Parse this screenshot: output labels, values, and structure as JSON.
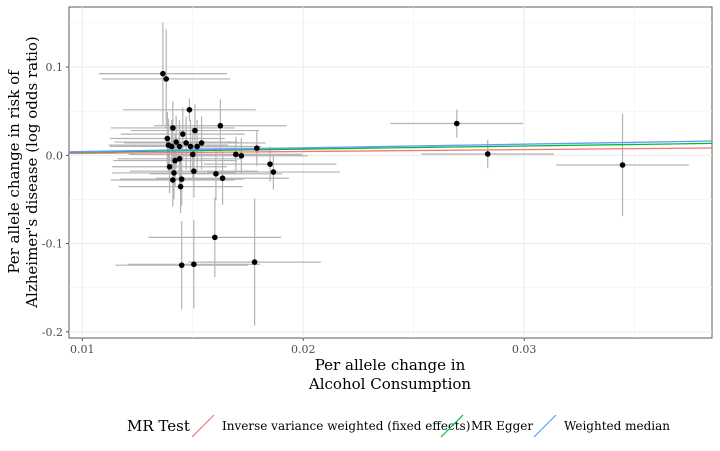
{
  "chart_data": {
    "type": "scatter",
    "xlabel": [
      "Per allele change in",
      "Alcohol Consumption"
    ],
    "ylabel": [
      "Per allele change in risk of",
      "Alzheimer's disease (log odds ratio)"
    ],
    "xlim": [
      0.0094,
      0.0385
    ],
    "ylim": [
      -0.207,
      0.168
    ],
    "x_ticks": [
      0.01,
      0.02,
      0.03
    ],
    "x_tick_labels": [
      "0.01",
      "0.02",
      "0.03"
    ],
    "y_ticks": [
      -0.2,
      -0.1,
      0.0,
      0.1
    ],
    "y_tick_labels": [
      "-0.2",
      "-0.1",
      "0.0",
      "0.1"
    ],
    "grid": true,
    "legend_position": "bottom",
    "points": [
      {
        "x": 0.01365,
        "y": 0.0925,
        "xerr": 0.0029,
        "yerr": 0.058
      },
      {
        "x": 0.0138,
        "y": 0.0865,
        "xerr": 0.0029,
        "yerr": 0.056
      },
      {
        "x": 0.01485,
        "y": 0.0515,
        "xerr": 0.003,
        "yerr": 0.013
      },
      {
        "x": 0.01385,
        "y": 0.019,
        "xerr": 0.0026,
        "yerr": 0.03
      },
      {
        "x": 0.0139,
        "y": 0.0115,
        "xerr": 0.0027,
        "yerr": 0.03
      },
      {
        "x": 0.01405,
        "y": 0.01,
        "xerr": 0.0028,
        "yerr": 0.03
      },
      {
        "x": 0.0141,
        "y": 0.031,
        "xerr": 0.0028,
        "yerr": 0.03
      },
      {
        "x": 0.01425,
        "y": 0.015,
        "xerr": 0.0028,
        "yerr": 0.03
      },
      {
        "x": 0.0144,
        "y": 0.01,
        "xerr": 0.0028,
        "yerr": 0.03
      },
      {
        "x": 0.01455,
        "y": 0.024,
        "xerr": 0.0028,
        "yerr": 0.03
      },
      {
        "x": 0.0147,
        "y": 0.014,
        "xerr": 0.0028,
        "yerr": 0.03
      },
      {
        "x": 0.0149,
        "y": 0.01,
        "xerr": 0.0028,
        "yerr": 0.03
      },
      {
        "x": 0.0151,
        "y": 0.028,
        "xerr": 0.0029,
        "yerr": 0.03
      },
      {
        "x": 0.0152,
        "y": 0.01,
        "xerr": 0.0029,
        "yerr": 0.03
      },
      {
        "x": 0.0154,
        "y": 0.014,
        "xerr": 0.0029,
        "yerr": 0.03
      },
      {
        "x": 0.015,
        "y": 0.001,
        "xerr": 0.0029,
        "yerr": 0.03
      },
      {
        "x": 0.01625,
        "y": 0.0335,
        "xerr": 0.003,
        "yerr": 0.03
      },
      {
        "x": 0.0179,
        "y": 0.008,
        "xerr": 0.003,
        "yerr": 0.02
      },
      {
        "x": 0.01695,
        "y": 0.001,
        "xerr": 0.003,
        "yerr": 0.02
      },
      {
        "x": 0.0172,
        "y": -0.0005,
        "xerr": 0.003,
        "yerr": 0.02
      },
      {
        "x": 0.0185,
        "y": -0.01,
        "xerr": 0.003,
        "yerr": 0.02
      },
      {
        "x": 0.01865,
        "y": -0.019,
        "xerr": 0.003,
        "yerr": 0.02
      },
      {
        "x": 0.01395,
        "y": -0.013,
        "xerr": 0.0026,
        "yerr": 0.03
      },
      {
        "x": 0.0142,
        "y": -0.006,
        "xerr": 0.0028,
        "yerr": 0.03
      },
      {
        "x": 0.0144,
        "y": -0.004,
        "xerr": 0.0028,
        "yerr": 0.03
      },
      {
        "x": 0.01415,
        "y": -0.02,
        "xerr": 0.0028,
        "yerr": 0.03
      },
      {
        "x": 0.0141,
        "y": -0.028,
        "xerr": 0.0028,
        "yerr": 0.03
      },
      {
        "x": 0.0145,
        "y": -0.027,
        "xerr": 0.0028,
        "yerr": 0.03
      },
      {
        "x": 0.01445,
        "y": -0.0355,
        "xerr": 0.0028,
        "yerr": 0.03
      },
      {
        "x": 0.01505,
        "y": -0.018,
        "xerr": 0.0029,
        "yerr": 0.03
      },
      {
        "x": 0.01605,
        "y": -0.021,
        "xerr": 0.003,
        "yerr": 0.03
      },
      {
        "x": 0.01635,
        "y": -0.026,
        "xerr": 0.003,
        "yerr": 0.03
      },
      {
        "x": 0.016,
        "y": -0.093,
        "xerr": 0.003,
        "yerr": 0.045
      },
      {
        "x": 0.0178,
        "y": -0.121,
        "xerr": 0.003,
        "yerr": 0.072
      },
      {
        "x": 0.01505,
        "y": -0.1235,
        "xerr": 0.003,
        "yerr": 0.05
      },
      {
        "x": 0.0145,
        "y": -0.1245,
        "xerr": 0.003,
        "yerr": 0.05
      },
      {
        "x": 0.02695,
        "y": 0.036,
        "xerr": 0.003,
        "yerr": 0.016
      },
      {
        "x": 0.02835,
        "y": 0.0015,
        "xerr": 0.003,
        "yerr": 0.016
      },
      {
        "x": 0.03445,
        "y": -0.011,
        "xerr": 0.003,
        "yerr": 0.058
      }
    ],
    "series": [
      {
        "name": "Inverse variance weighted (fixed effects)",
        "color": "#F8766D",
        "slope": 0.215
      },
      {
        "name": "MR Egger",
        "color": "#00BA38",
        "slope": 0.35
      },
      {
        "name": "Weighted median",
        "color": "#619CFF",
        "slope": 0.42
      }
    ],
    "legend_title": "MR Test"
  }
}
